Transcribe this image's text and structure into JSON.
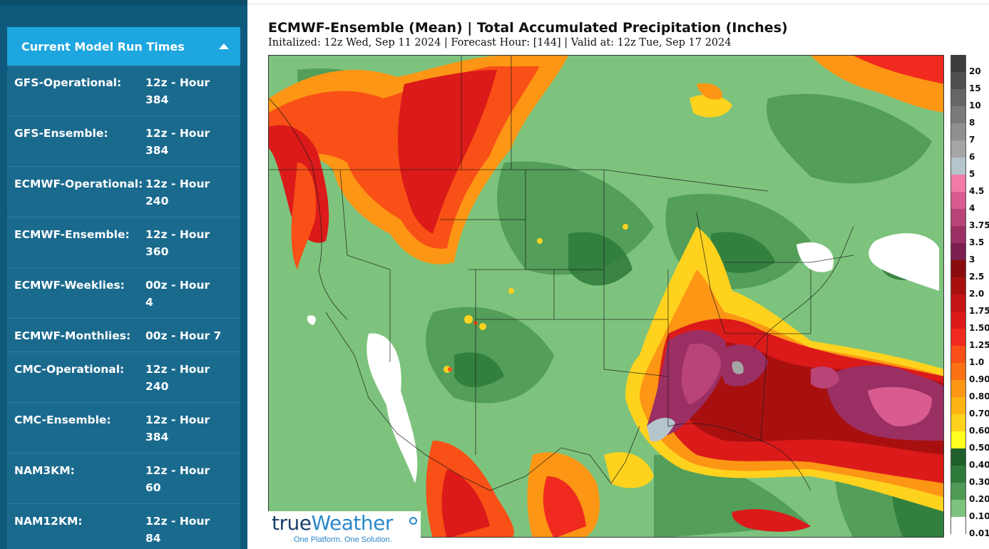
{
  "sidebar": {
    "panel_title": "Current Model Run Times",
    "runs": [
      {
        "name": "GFS-Operational:",
        "time": "12z - Hour",
        "hour": "384"
      },
      {
        "name": "GFS-Ensemble:",
        "time": "12z - Hour",
        "hour": "384"
      },
      {
        "name": "ECMWF-Operational:",
        "time": "12z - Hour",
        "hour": "240"
      },
      {
        "name": "ECMWF-Ensemble:",
        "time": "12z - Hour",
        "hour": "360"
      },
      {
        "name": "ECMWF-Weeklies:",
        "time": "00z - Hour",
        "hour": "4"
      },
      {
        "name": "ECMWF-Monthlies:",
        "time": "00z - Hour 7",
        "hour": ""
      },
      {
        "name": "CMC-Operational:",
        "time": "12z - Hour",
        "hour": "240"
      },
      {
        "name": "CMC-Ensemble:",
        "time": "12z - Hour",
        "hour": "384"
      },
      {
        "name": "NAM3KM:",
        "time": "12z - Hour",
        "hour": "60"
      },
      {
        "name": "NAM12KM:",
        "time": "12z - Hour",
        "hour": "84"
      }
    ]
  },
  "map": {
    "title": "ECMWF-Ensemble (Mean)  | Total Accumulated Precipitation (Inches)",
    "subtitle": "Initalized: 12z Wed, Sep 11 2024  |  Forecast Hour: [144]  |  Valid at: 12z Tue, Sep 17 2024"
  },
  "logo": {
    "text_a": "true",
    "text_b": "Weather",
    "tagline": "One Platform. One Solution."
  },
  "legend": [
    {
      "label": "20",
      "color": "#3c3c3c"
    },
    {
      "label": "15",
      "color": "#505050"
    },
    {
      "label": "10",
      "color": "#666666"
    },
    {
      "label": "8",
      "color": "#7a7a7a"
    },
    {
      "label": "7",
      "color": "#8f8f8f"
    },
    {
      "label": "6",
      "color": "#a5a5a5"
    },
    {
      "label": "5",
      "color": "#b5c5cc"
    },
    {
      "label": "4.5",
      "color": "#f07aa8"
    },
    {
      "label": "4",
      "color": "#d85c90"
    },
    {
      "label": "3.75",
      "color": "#b84478"
    },
    {
      "label": "3.5",
      "color": "#9a2f64"
    },
    {
      "label": "3",
      "color": "#7a1f4e"
    },
    {
      "label": "2.5",
      "color": "#8a0c0c"
    },
    {
      "label": "2.0",
      "color": "#a81010"
    },
    {
      "label": "1.75",
      "color": "#c41414"
    },
    {
      "label": "1.50",
      "color": "#dc1a1a"
    },
    {
      "label": "1.25",
      "color": "#f02a1e"
    },
    {
      "label": "1.0",
      "color": "#f85016"
    },
    {
      "label": "0.90",
      "color": "#fa7014"
    },
    {
      "label": "0.80",
      "color": "#fc9614"
    },
    {
      "label": "0.70",
      "color": "#fdb414"
    },
    {
      "label": "0.60",
      "color": "#ffd21e"
    },
    {
      "label": "0.50",
      "color": "#ffff1e"
    },
    {
      "label": "0.40",
      "color": "#1f5f2a"
    },
    {
      "label": "0.30",
      "color": "#2e7a3a"
    },
    {
      "label": "0.20",
      "color": "#4f9a55"
    },
    {
      "label": "0.10",
      "color": "#7dc37d"
    },
    {
      "label": "0.01",
      "color": "#ffffff"
    }
  ]
}
